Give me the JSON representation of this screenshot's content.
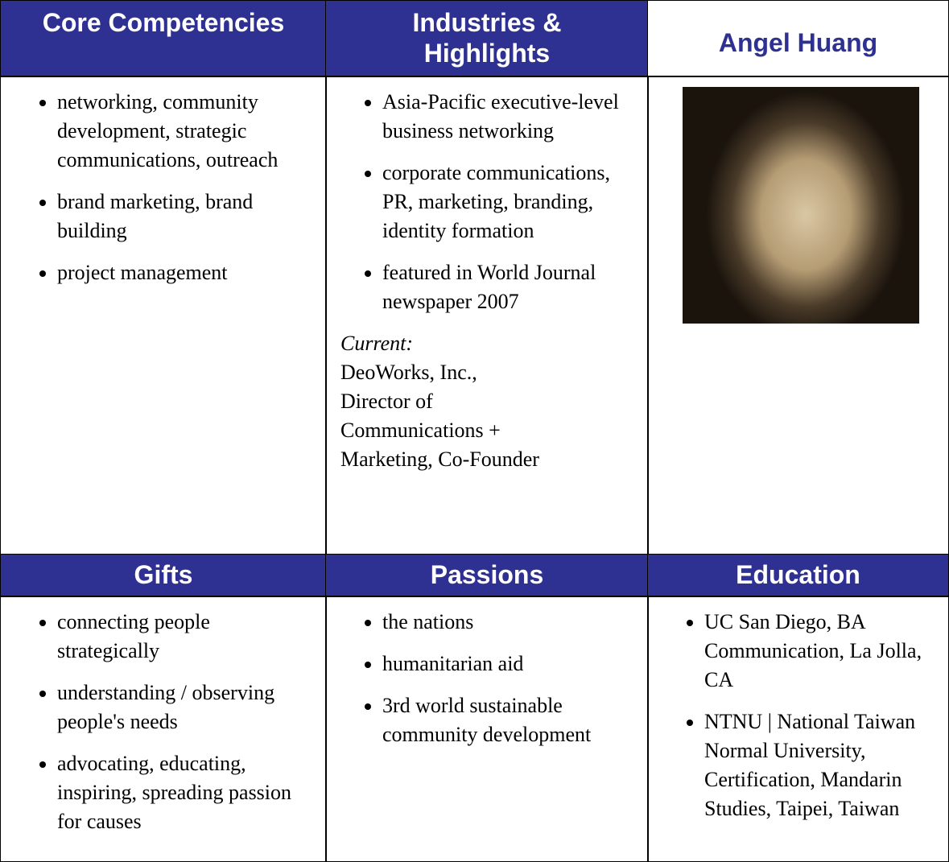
{
  "name": "Angel Huang",
  "sections": [
    {
      "title": "Core Competencies",
      "items": [
        "networking, community development, strategic communications, outreach",
        "brand marketing, brand building",
        "project management"
      ]
    },
    {
      "title": "Industries & Highlights",
      "items": [
        "Asia-Pacific executive-level business networking",
        "corporate communications, PR, marketing, branding, identity formation",
        "featured in World Journal newspaper 2007"
      ],
      "current_label": "Current:",
      "current_lines": [
        "DeoWorks, Inc.,",
        "Director of",
        "Communications +",
        "Marketing, Co-Founder"
      ]
    },
    {
      "title": "Gifts",
      "items": [
        "connecting people strategically",
        "understanding / observing people's needs",
        "advocating, educating, inspiring, spreading passion for causes"
      ]
    },
    {
      "title": "Passions",
      "items": [
        "the nations",
        "humanitarian aid",
        "3rd world sustainable community development"
      ]
    },
    {
      "title": "Education",
      "items": [
        "UC San Diego, BA Communication, La Jolla, CA",
        "NTNU | National Taiwan Normal University, Certification, Mandarin Studies, Taipei, Taiwan"
      ]
    }
  ]
}
